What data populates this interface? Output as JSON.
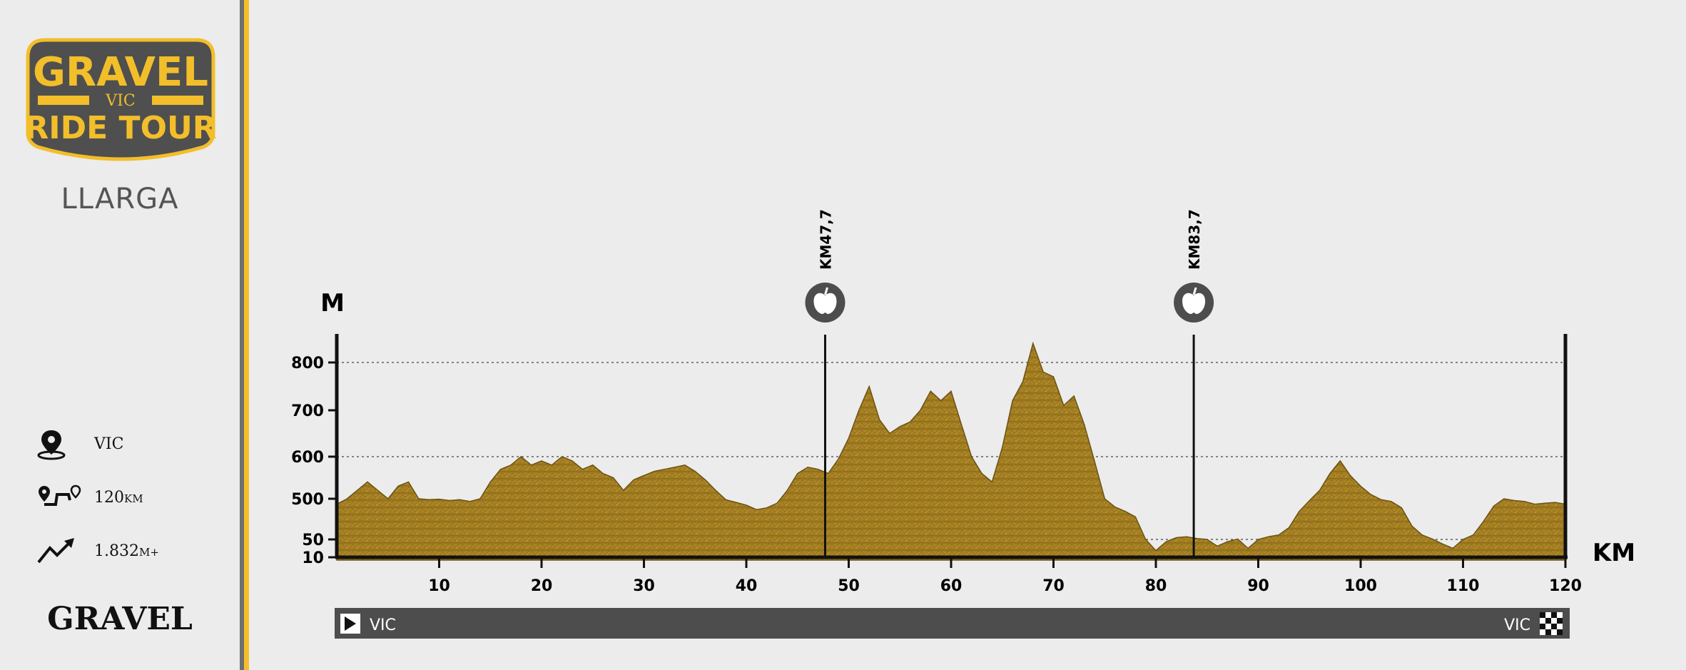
{
  "logo": {
    "line1": "GRAVEL",
    "line2": "VIC",
    "line3": "RIDE TOUR"
  },
  "variant": "LLARGA",
  "stats": [
    {
      "icon": "location-pin-icon",
      "value": "VIC",
      "unit": ""
    },
    {
      "icon": "route-icon",
      "value": "120",
      "unit": "KM"
    },
    {
      "icon": "elevation-gain-icon",
      "value": "1.832",
      "unit": "M+"
    }
  ],
  "category": "GRAVEL",
  "colors": {
    "accent": "#f2be2a",
    "terrain": "#b38a25",
    "dark": "#4d4d4d",
    "divider": "#6e6e6e"
  },
  "chart_data": {
    "type": "area",
    "ylabel": "M",
    "xlabel": "KM",
    "yticks": [
      10,
      50,
      500,
      600,
      700,
      800
    ],
    "xticks": [
      10,
      20,
      30,
      40,
      50,
      60,
      70,
      80,
      90,
      100,
      110,
      120
    ],
    "xlim": [
      0,
      120
    ],
    "dashed_gridlines": [
      50,
      600,
      800
    ],
    "start_label": "VIC",
    "finish_label": "VIC",
    "feed_stations": [
      {
        "km": 47.7,
        "label": "KM47,7",
        "icon": "apple-icon"
      },
      {
        "km": 83.7,
        "label": "KM83,7",
        "icon": "apple-icon"
      }
    ],
    "profile": {
      "x": [
        0,
        1,
        2,
        3,
        4,
        5,
        6,
        7,
        8,
        9,
        10,
        11,
        12,
        13,
        14,
        15,
        16,
        17,
        18,
        19,
        20,
        21,
        22,
        23,
        24,
        25,
        26,
        27,
        28,
        29,
        30,
        31,
        32,
        33,
        34,
        35,
        36,
        37,
        38,
        39,
        40,
        41,
        42,
        43,
        44,
        45,
        46,
        47,
        48,
        49,
        50,
        51,
        52,
        53,
        54,
        55,
        56,
        57,
        58,
        59,
        60,
        61,
        62,
        63,
        64,
        65,
        66,
        67,
        68,
        69,
        70,
        71,
        72,
        73,
        74,
        75,
        76,
        77,
        78,
        79,
        80,
        81,
        82,
        83,
        84,
        85,
        86,
        87,
        88,
        89,
        90,
        91,
        92,
        93,
        94,
        95,
        96,
        97,
        98,
        99,
        100,
        101,
        102,
        103,
        104,
        105,
        106,
        107,
        108,
        109,
        110,
        111,
        112,
        113,
        114,
        115,
        116,
        117,
        118,
        119,
        120
      ],
      "y": [
        440,
        500,
        520,
        540,
        520,
        500,
        530,
        540,
        500,
        490,
        495,
        480,
        490,
        470,
        500,
        540,
        570,
        580,
        600,
        580,
        590,
        580,
        600,
        590,
        570,
        580,
        560,
        550,
        520,
        545,
        555,
        565,
        570,
        575,
        580,
        565,
        545,
        520,
        490,
        460,
        430,
        380,
        400,
        450,
        520,
        560,
        575,
        570,
        560,
        595,
        640,
        700,
        750,
        680,
        650,
        665,
        675,
        700,
        740,
        720,
        740,
        670,
        600,
        560,
        540,
        620,
        720,
        760,
        840,
        780,
        770,
        710,
        730,
        670,
        590,
        500,
        410,
        360,
        300,
        50,
        25,
        45,
        70,
        80,
        60,
        50,
        35,
        45,
        55,
        30,
        50,
        80,
        100,
        180,
        360,
        480,
        520,
        560,
        590,
        555,
        530,
        510,
        490,
        470,
        400,
        200,
        100,
        55,
        40,
        30,
        50,
        100,
        250,
        420,
        500,
        480,
        470,
        440,
        450,
        460,
        440
      ]
    }
  }
}
